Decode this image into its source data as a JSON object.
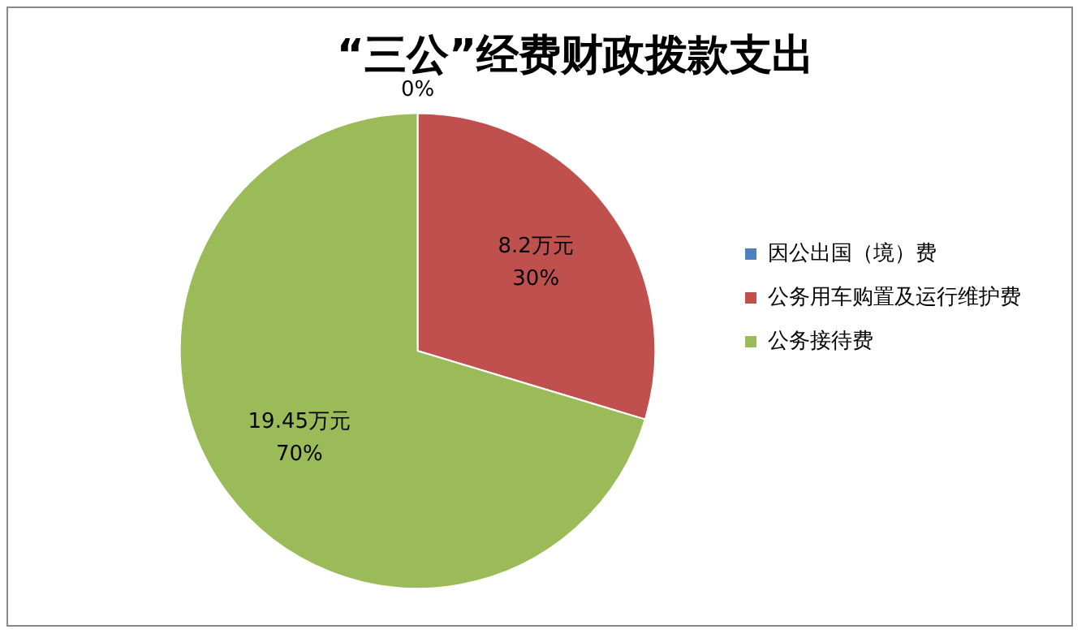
{
  "chart_data": {
    "type": "pie",
    "title": "“三公”经费财政拨款支出",
    "categories": [
      "因公出国（境）费",
      "公务用车购置及运行维护费",
      "公务接待费"
    ],
    "values": [
      0,
      8.2,
      19.45
    ],
    "colors": [
      "#4f81bd",
      "#c0504d",
      "#9bbb59"
    ],
    "value_labels": [
      "0%",
      "8.2万元\n30%",
      "19.45万元\n70%"
    ],
    "legend": "right"
  }
}
